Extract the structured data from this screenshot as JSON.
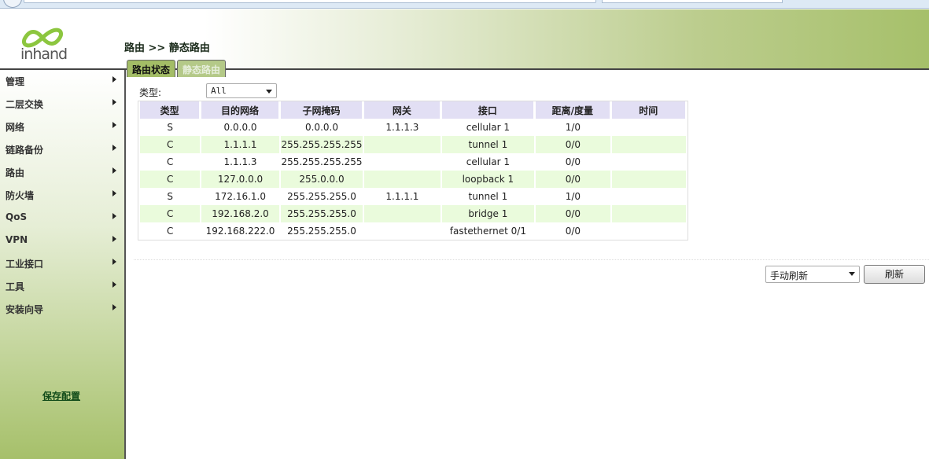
{
  "brand": {
    "logo_text": "inhand",
    "accent": "#a6c06a"
  },
  "sidebar": {
    "items": [
      {
        "label": "管理"
      },
      {
        "label": "二层交换"
      },
      {
        "label": "网络"
      },
      {
        "label": "链路备份"
      },
      {
        "label": "路由"
      },
      {
        "label": "防火墙"
      },
      {
        "label": "QoS"
      },
      {
        "label": "VPN"
      },
      {
        "label": "工业接口"
      },
      {
        "label": "工具"
      },
      {
        "label": "安装向导"
      }
    ],
    "save_label": "保存配置"
  },
  "breadcrumb": "路由 >> 静态路由",
  "tabs": [
    {
      "label": "路由状态",
      "active": true
    },
    {
      "label": "静态路由",
      "active": false
    }
  ],
  "filter": {
    "label": "类型:",
    "value": "All"
  },
  "table": {
    "headers": [
      "类型",
      "目的网络",
      "子网掩码",
      "网关",
      "接口",
      "距离/度量",
      "时间"
    ],
    "rows": [
      [
        "S",
        "0.0.0.0",
        "0.0.0.0",
        "1.1.1.3",
        "cellular 1",
        "1/0",
        ""
      ],
      [
        "C",
        "1.1.1.1",
        "255.255.255.255",
        "",
        "tunnel 1",
        "0/0",
        ""
      ],
      [
        "C",
        "1.1.1.3",
        "255.255.255.255",
        "",
        "cellular 1",
        "0/0",
        ""
      ],
      [
        "C",
        "127.0.0.0",
        "255.0.0.0",
        "",
        "loopback 1",
        "0/0",
        ""
      ],
      [
        "S",
        "172.16.1.0",
        "255.255.255.0",
        "1.1.1.1",
        "tunnel 1",
        "1/0",
        ""
      ],
      [
        "C",
        "192.168.2.0",
        "255.255.255.0",
        "",
        "bridge 1",
        "0/0",
        ""
      ],
      [
        "C",
        "192.168.222.0",
        "255.255.255.0",
        "",
        "fastethernet 0/1",
        "0/0",
        ""
      ]
    ]
  },
  "refresh": {
    "mode": "手动刷新",
    "button": "刷新"
  }
}
